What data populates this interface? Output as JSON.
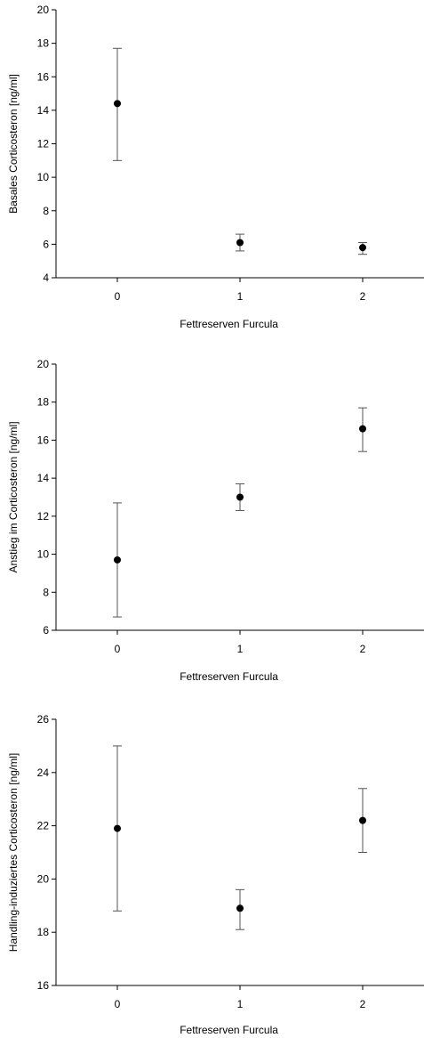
{
  "chart_data": [
    {
      "type": "scatter",
      "title": "",
      "xlabel": "Fettreserven Furcula",
      "ylabel": "Basales Corticosteron [ng/ml]",
      "x_ticks": [
        "0",
        "1",
        "2"
      ],
      "xlim": [
        -0.5,
        2.5
      ],
      "ylim": [
        4,
        20
      ],
      "y_ticks": [
        4,
        6,
        8,
        10,
        12,
        14,
        16,
        18,
        20
      ],
      "grid": false,
      "error_bars": true,
      "points": [
        {
          "x": 0,
          "y": 14.4,
          "lower": 11.0,
          "upper": 17.7
        },
        {
          "x": 1,
          "y": 6.1,
          "lower": 5.6,
          "upper": 6.6
        },
        {
          "x": 2,
          "y": 5.8,
          "lower": 5.4,
          "upper": 6.1
        }
      ]
    },
    {
      "type": "scatter",
      "title": "",
      "xlabel": "Fettreserven Furcula",
      "ylabel": "Anstieg im Corticosteron [ng/ml]",
      "x_ticks": [
        "0",
        "1",
        "2"
      ],
      "xlim": [
        -0.5,
        2.5
      ],
      "ylim": [
        6,
        20
      ],
      "y_ticks": [
        6,
        8,
        10,
        12,
        14,
        16,
        18,
        20
      ],
      "grid": false,
      "error_bars": true,
      "points": [
        {
          "x": 0,
          "y": 9.7,
          "lower": 6.7,
          "upper": 12.7
        },
        {
          "x": 1,
          "y": 13.0,
          "lower": 12.3,
          "upper": 13.7
        },
        {
          "x": 2,
          "y": 16.6,
          "lower": 15.4,
          "upper": 17.7
        }
      ]
    },
    {
      "type": "scatter",
      "title": "",
      "xlabel": "Fettreserven Furcula",
      "ylabel": "Handling-induziertes Corticosteron [ng/ml]",
      "x_ticks": [
        "0",
        "1",
        "2"
      ],
      "xlim": [
        -0.5,
        2.5
      ],
      "ylim": [
        16,
        26
      ],
      "y_ticks": [
        16,
        18,
        20,
        22,
        24,
        26
      ],
      "grid": false,
      "error_bars": true,
      "points": [
        {
          "x": 0,
          "y": 21.9,
          "lower": 18.8,
          "upper": 25.0
        },
        {
          "x": 1,
          "y": 18.9,
          "lower": 18.1,
          "upper": 19.6
        },
        {
          "x": 2,
          "y": 22.2,
          "lower": 21.0,
          "upper": 23.4
        }
      ]
    }
  ]
}
